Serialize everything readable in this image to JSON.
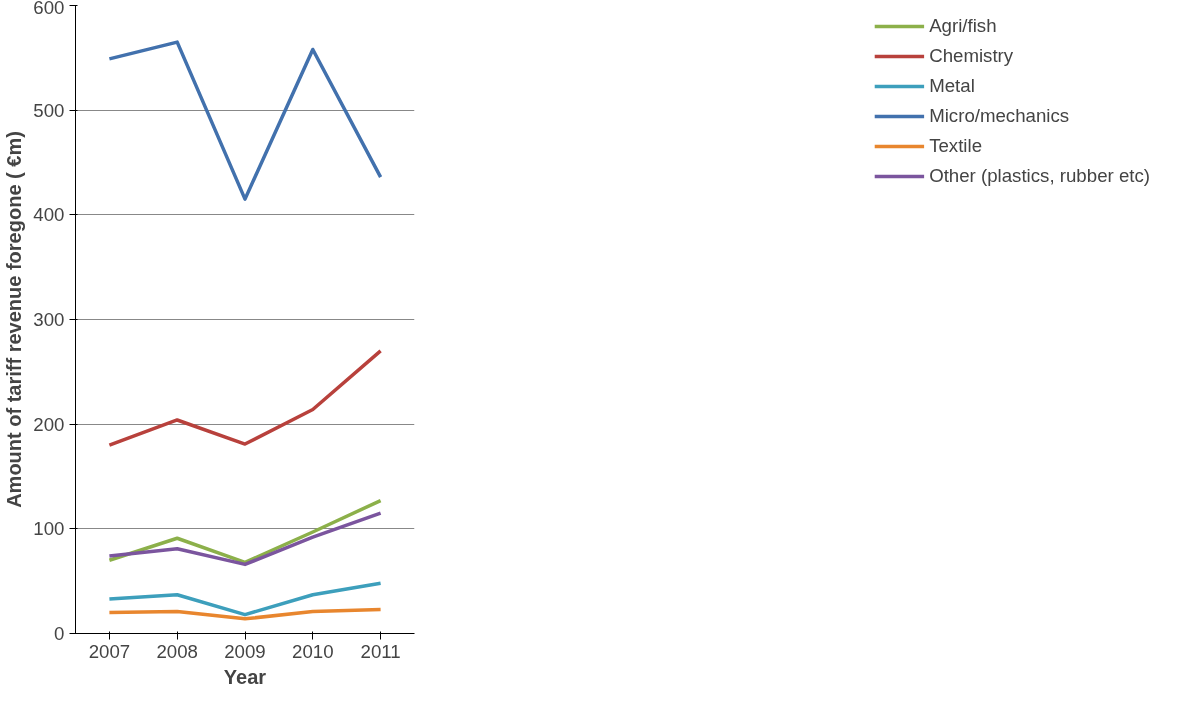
{
  "chart_data": {
    "type": "line",
    "xlabel": "Year",
    "ylabel": "Amount of tariff revenue foregone ( €m)",
    "categories": [
      "2007",
      "2008",
      "2009",
      "2010",
      "2011"
    ],
    "series": [
      {
        "name": "Agri/fish",
        "color": "#8cb04a",
        "values": [
          70,
          91,
          68,
          97,
          127
        ]
      },
      {
        "name": "Chemistry",
        "color": "#b8413c",
        "values": [
          180,
          204,
          181,
          214,
          270
        ]
      },
      {
        "name": "Metal",
        "color": "#3d9fbc",
        "values": [
          33,
          37,
          18,
          37,
          48
        ]
      },
      {
        "name": "Micro/mechanics",
        "color": "#4271ad",
        "values": [
          549,
          565,
          415,
          558,
          436
        ]
      },
      {
        "name": "Textile",
        "color": "#e8862e",
        "values": [
          20,
          21,
          14,
          21,
          23
        ]
      },
      {
        "name": "Other (plastics, rubber etc)",
        "color": "#7b559e",
        "values": [
          74,
          81,
          66,
          92,
          115
        ]
      }
    ],
    "ylim": [
      0,
      600
    ],
    "yticks": [
      0,
      100,
      200,
      300,
      400,
      500,
      600
    ],
    "grid": "y",
    "legend": "right",
    "marker": "none",
    "line_style": "solid"
  }
}
